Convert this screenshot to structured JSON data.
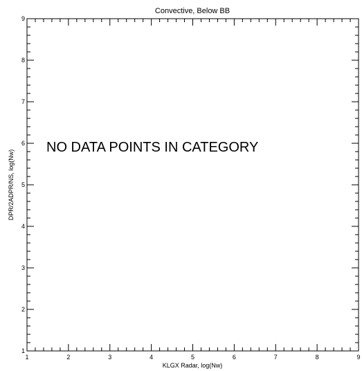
{
  "chart_data": {
    "type": "scatter",
    "title": "Convective, Below BB",
    "xlabel": "KLGX Radar, log(Nw)",
    "ylabel": "DPR/2ADPR/NS, log(Nw)",
    "xlim": [
      1,
      9
    ],
    "ylim": [
      1,
      9
    ],
    "x_ticks": [
      "1",
      "2",
      "3",
      "4",
      "5",
      "6",
      "7",
      "8",
      "9"
    ],
    "y_ticks": [
      "1",
      "2",
      "3",
      "4",
      "5",
      "6",
      "7",
      "8",
      "9"
    ],
    "minor_per_major": 5,
    "grid": false,
    "series": [],
    "annotation": "NO DATA POINTS IN CATEGORY"
  }
}
